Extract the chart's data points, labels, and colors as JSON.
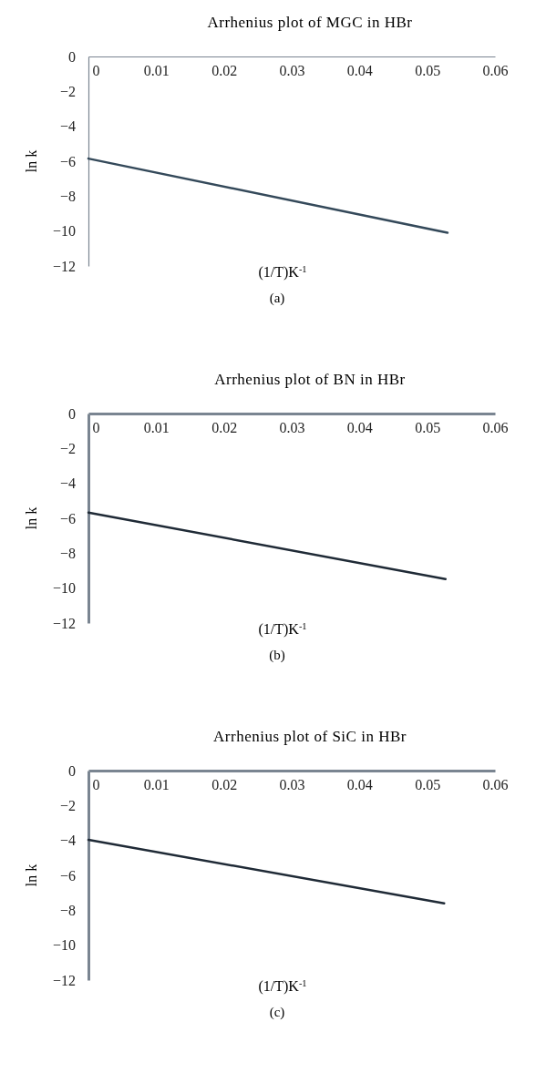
{
  "chart_data": [
    {
      "type": "line",
      "title": "Arrhenius plot of MGC in HBr",
      "xlabel": "(1/T)K$^{-1}$",
      "ylabel": "ln k",
      "annotations": [
        "(a)"
      ],
      "xlim": [
        0,
        0.06
      ],
      "xticks": [
        0,
        0.01,
        0.02,
        0.03,
        0.04,
        0.05,
        0.06
      ],
      "ylim": [
        -12,
        0
      ],
      "yticks": [
        0,
        -2,
        -4,
        -6,
        -8,
        -10,
        -12
      ],
      "series": [
        {
          "color": "#34495a",
          "x": [
            0,
            0.053
          ],
          "values": [
            -5.85,
            -10.1
          ]
        }
      ]
    },
    {
      "type": "line",
      "title": "Arrhenius plot of BN in HBr",
      "xlabel": "(1/T)K$^{-1}$",
      "ylabel": "ln k",
      "annotations": [
        "(b)"
      ],
      "xlim": [
        0,
        0.06
      ],
      "xticks": [
        0,
        0.01,
        0.02,
        0.03,
        0.04,
        0.05,
        0.06
      ],
      "ylim": [
        -12,
        0
      ],
      "yticks": [
        0,
        -2,
        -4,
        -6,
        -8,
        -10,
        -12
      ],
      "series": [
        {
          "color": "#1f2a36",
          "x": [
            0,
            0.0527
          ],
          "values": [
            -5.67,
            -9.48
          ]
        }
      ]
    },
    {
      "type": "line",
      "title": "Arrhenius plot of SiC in HBr",
      "xlabel": "(1/T)K$^{-1}$",
      "ylabel": "ln k",
      "annotations": [
        "(c)"
      ],
      "xlim": [
        0,
        0.06
      ],
      "xticks": [
        0,
        0.01,
        0.02,
        0.03,
        0.04,
        0.05,
        0.06
      ],
      "ylim": [
        -12,
        0
      ],
      "yticks": [
        0,
        -2,
        -4,
        -6,
        -8,
        -10,
        -12
      ],
      "series": [
        {
          "color": "#1f2a36",
          "x": [
            0,
            0.0525
          ],
          "values": [
            -3.97,
            -7.6
          ]
        }
      ]
    }
  ]
}
